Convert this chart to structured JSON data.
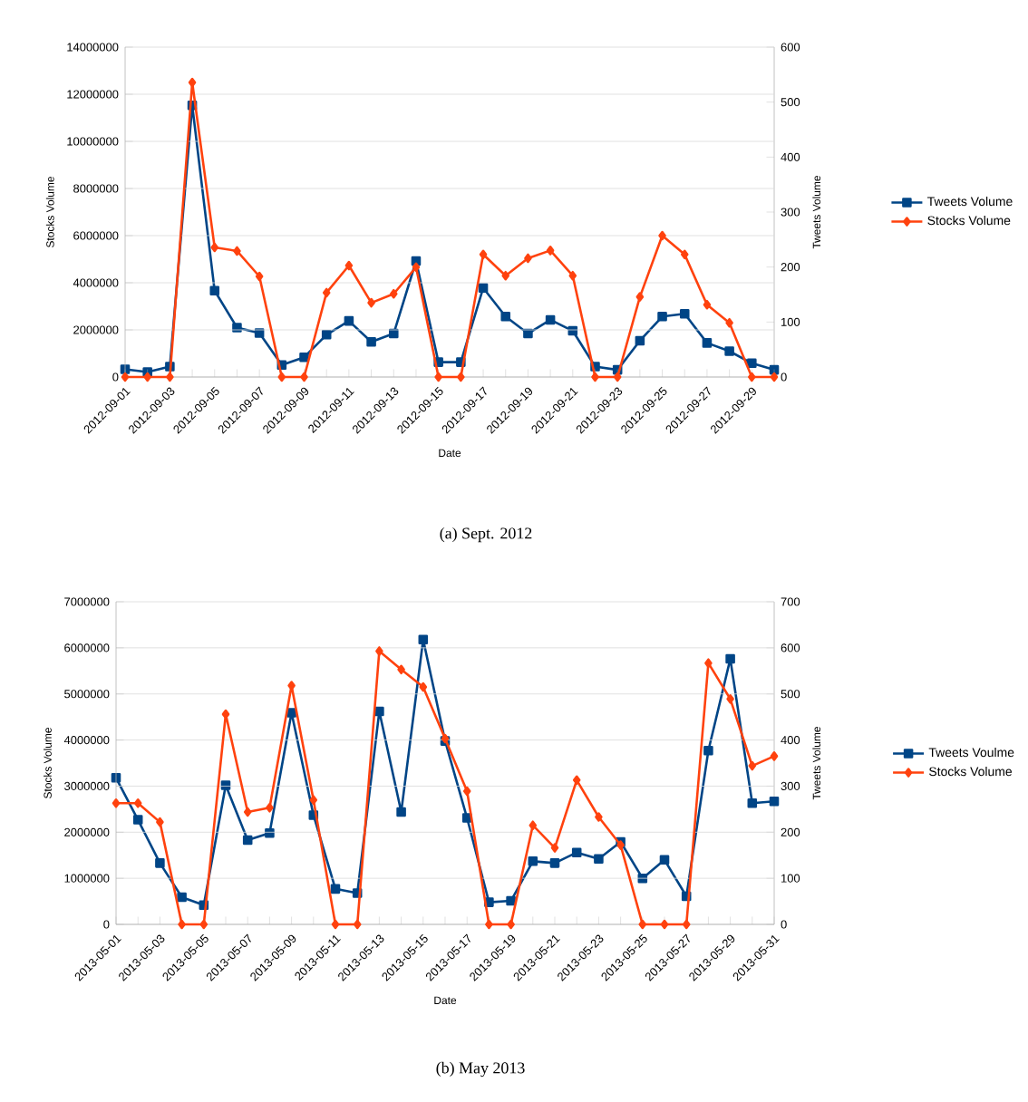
{
  "chart_data": [
    {
      "type": "line",
      "xlabel": "Date",
      "ylabel": "Stocks Volume",
      "y2label": "Tweets Volume",
      "categories": [
        "2012-09-01",
        null,
        "2012-09-03",
        null,
        "2012-09-05",
        null,
        "2012-09-07",
        null,
        "2012-09-09",
        null,
        "2012-09-11",
        null,
        "2012-09-13",
        null,
        "2012-09-15",
        null,
        "2012-09-17",
        null,
        "2012-09-19",
        null,
        "2012-09-21",
        null,
        "2012-09-23",
        null,
        "2012-09-25",
        null,
        "2012-09-27",
        null,
        "2012-09-29",
        null
      ],
      "series": [
        {
          "name": "Tweets Volume",
          "color": "#004586",
          "axis": "y2",
          "marker": "square",
          "values": [
            14,
            9,
            19,
            494,
            157,
            90,
            80,
            22,
            36,
            77,
            102,
            64,
            79,
            211,
            27,
            27,
            162,
            110,
            79,
            104,
            84,
            19,
            13,
            66,
            110,
            115,
            62,
            47,
            25,
            13
          ]
        },
        {
          "name": "Stocks Volume",
          "color": "#ff420e",
          "marker": "diamond",
          "values": [
            0,
            0,
            0,
            12500000,
            5500000,
            5350000,
            4270000,
            0,
            0,
            3580000,
            4730000,
            3150000,
            3530000,
            4660000,
            0,
            0,
            5200000,
            4300000,
            5040000,
            5370000,
            4300000,
            0,
            0,
            3400000,
            6000000,
            5200000,
            3070000,
            2300000,
            0,
            0
          ]
        }
      ],
      "ylim": [
        0,
        14000000
      ],
      "yticks": [
        0,
        2000000,
        4000000,
        6000000,
        8000000,
        10000000,
        12000000,
        14000000
      ],
      "y2lim": [
        0,
        600
      ],
      "y2ticks": [
        0,
        100,
        200,
        300,
        400,
        500,
        600
      ],
      "grid": "y",
      "legend": "right",
      "annotations": [
        "(a) Sept. 2012"
      ]
    },
    {
      "type": "line",
      "xlabel": "Date",
      "ylabel": "Stocks Volume",
      "y2label": "Tweets Volume",
      "categories": [
        "2013-05-01",
        null,
        "2013-05-03",
        null,
        "2013-05-05",
        null,
        "2013-05-07",
        null,
        "2013-05-09",
        null,
        "2013-05-11",
        null,
        "2013-05-13",
        null,
        "2013-05-15",
        null,
        "2013-05-17",
        null,
        "2013-05-19",
        null,
        "2013-05-21",
        null,
        "2013-05-23",
        null,
        "2013-05-25",
        null,
        "2013-05-27",
        null,
        "2013-05-29",
        null,
        "2013-05-31"
      ],
      "series": [
        {
          "name": "Tweets Voulme",
          "color": "#004586",
          "axis": "y2",
          "marker": "square",
          "values": [
            318,
            227,
            133,
            59,
            42,
            302,
            183,
            198,
            459,
            237,
            77,
            68,
            462,
            244,
            618,
            398,
            231,
            48,
            51,
            137,
            133,
            156,
            142,
            179,
            100,
            140,
            61,
            377,
            576,
            263,
            267
          ]
        },
        {
          "name": "Stocks Volume",
          "color": "#ff420e",
          "marker": "diamond",
          "values": [
            2630000,
            2630000,
            2220000,
            0,
            0,
            4560000,
            2440000,
            2530000,
            5180000,
            2700000,
            0,
            0,
            5930000,
            5530000,
            5150000,
            4030000,
            2890000,
            0,
            0,
            2150000,
            1660000,
            3130000,
            2330000,
            1720000,
            0,
            0,
            0,
            5670000,
            4890000,
            3440000,
            3650000
          ]
        }
      ],
      "ylim": [
        0,
        7000000
      ],
      "yticks": [
        0,
        1000000,
        2000000,
        3000000,
        4000000,
        5000000,
        6000000,
        7000000
      ],
      "y2lim": [
        0,
        700
      ],
      "y2ticks": [
        0,
        100,
        200,
        300,
        400,
        500,
        600,
        700
      ],
      "grid": "y",
      "legend": "right",
      "annotations": [
        "(b) May 2013"
      ]
    }
  ]
}
